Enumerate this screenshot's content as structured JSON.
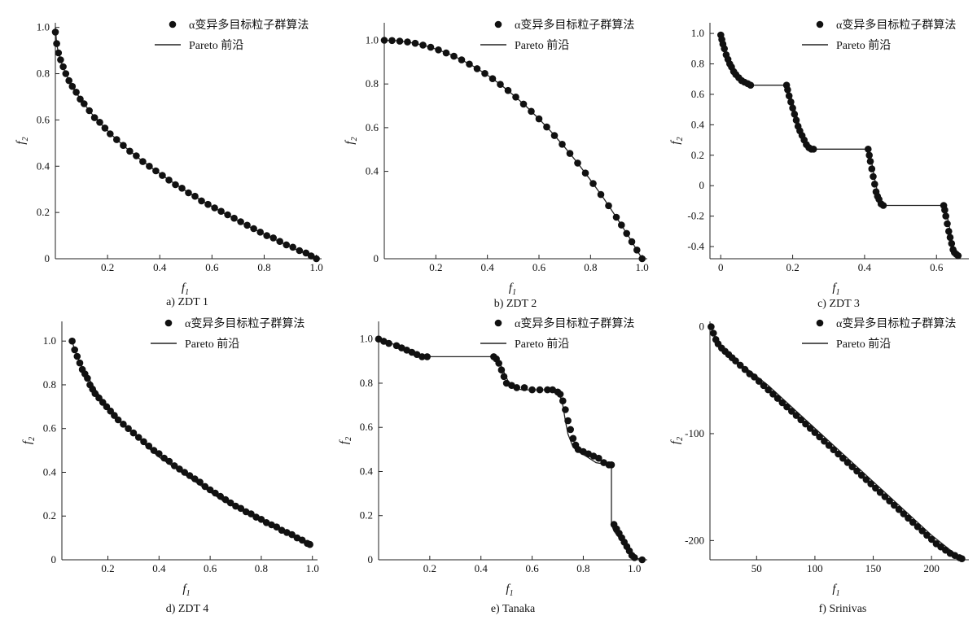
{
  "figure": {
    "legend": {
      "marker_label": "α变异多目标粒子群算法",
      "line_label": "Pareto 前沿"
    },
    "axis_labels": {
      "x": "f",
      "x_sub": "1",
      "y": "f",
      "y_sub": "2"
    }
  },
  "chart_data": [
    {
      "id": "a",
      "type": "scatter",
      "caption": "a)   ZDT 1",
      "xlim": [
        0,
        1.02
      ],
      "ylim": [
        0,
        1.02
      ],
      "xticks": [
        0.2,
        0.4,
        0.6,
        0.8,
        1.0
      ],
      "xtick_labels": [
        "0.2",
        "0.4",
        "0.6",
        "0.8",
        "1.0"
      ],
      "yticks": [
        0,
        0.2,
        0.4,
        0.6,
        0.8,
        1.0
      ],
      "ytick_labels": [
        "0",
        "0.2",
        "0.4",
        "0.6",
        "0.8",
        "1.0"
      ],
      "legend_pos": "top-right",
      "front_x": [
        0,
        0.005,
        0.01,
        0.02,
        0.03,
        0.05,
        0.07,
        0.1,
        0.14,
        0.18,
        0.22,
        0.27,
        0.32,
        0.38,
        0.44,
        0.5,
        0.56,
        0.62,
        0.68,
        0.74,
        0.8,
        0.86,
        0.92,
        0.97,
        1.0
      ],
      "front_y": [
        1.0,
        0.929,
        0.9,
        0.859,
        0.827,
        0.776,
        0.735,
        0.684,
        0.626,
        0.576,
        0.531,
        0.48,
        0.434,
        0.384,
        0.337,
        0.293,
        0.252,
        0.213,
        0.175,
        0.14,
        0.106,
        0.073,
        0.041,
        0.015,
        0.0
      ],
      "points_x": [
        0.0,
        0.005,
        0.012,
        0.02,
        0.03,
        0.04,
        0.052,
        0.065,
        0.08,
        0.095,
        0.11,
        0.13,
        0.15,
        0.17,
        0.19,
        0.21,
        0.235,
        0.26,
        0.285,
        0.31,
        0.335,
        0.36,
        0.385,
        0.41,
        0.435,
        0.46,
        0.485,
        0.51,
        0.535,
        0.56,
        0.585,
        0.61,
        0.635,
        0.66,
        0.685,
        0.71,
        0.735,
        0.76,
        0.785,
        0.81,
        0.835,
        0.86,
        0.885,
        0.91,
        0.935,
        0.96,
        0.98,
        1.0
      ],
      "points_y": [
        0.98,
        0.93,
        0.89,
        0.86,
        0.83,
        0.8,
        0.77,
        0.745,
        0.72,
        0.69,
        0.67,
        0.64,
        0.61,
        0.59,
        0.565,
        0.54,
        0.515,
        0.49,
        0.465,
        0.445,
        0.42,
        0.4,
        0.38,
        0.36,
        0.34,
        0.32,
        0.305,
        0.285,
        0.27,
        0.25,
        0.235,
        0.22,
        0.205,
        0.19,
        0.175,
        0.16,
        0.145,
        0.13,
        0.115,
        0.1,
        0.09,
        0.075,
        0.06,
        0.05,
        0.035,
        0.025,
        0.012,
        0.0
      ]
    },
    {
      "id": "b",
      "type": "scatter",
      "caption": "b)   ZDT 2",
      "xlim": [
        0,
        1.02
      ],
      "ylim": [
        0,
        1.08
      ],
      "xticks": [
        0.2,
        0.4,
        0.6,
        0.8,
        1.0
      ],
      "xtick_labels": [
        "0.2",
        "0.4",
        "0.6",
        "0.8",
        "1.0"
      ],
      "yticks": [
        0,
        0.4,
        0.6,
        0.8,
        1.0
      ],
      "ytick_labels": [
        "0",
        "0.4",
        "0.6",
        "0.8",
        "1.0"
      ],
      "legend_pos": "top-right",
      "front_x": [
        0,
        0.05,
        0.1,
        0.15,
        0.2,
        0.25,
        0.3,
        0.35,
        0.4,
        0.45,
        0.5,
        0.55,
        0.6,
        0.65,
        0.7,
        0.75,
        0.8,
        0.85,
        0.9,
        0.95,
        1.0
      ],
      "front_y": [
        1.0,
        0.998,
        0.99,
        0.978,
        0.96,
        0.938,
        0.91,
        0.878,
        0.84,
        0.798,
        0.75,
        0.698,
        0.64,
        0.578,
        0.51,
        0.438,
        0.36,
        0.278,
        0.19,
        0.098,
        0.0
      ],
      "points_x": [
        0.0,
        0.03,
        0.06,
        0.09,
        0.12,
        0.15,
        0.18,
        0.21,
        0.24,
        0.27,
        0.3,
        0.33,
        0.36,
        0.39,
        0.42,
        0.45,
        0.48,
        0.51,
        0.54,
        0.57,
        0.6,
        0.63,
        0.66,
        0.69,
        0.72,
        0.75,
        0.78,
        0.81,
        0.84,
        0.87,
        0.9,
        0.92,
        0.94,
        0.96,
        0.98,
        1.0
      ],
      "points_y": [
        1.0,
        0.999,
        0.996,
        0.992,
        0.986,
        0.978,
        0.968,
        0.956,
        0.942,
        0.927,
        0.91,
        0.891,
        0.87,
        0.848,
        0.824,
        0.798,
        0.77,
        0.74,
        0.708,
        0.675,
        0.64,
        0.603,
        0.564,
        0.524,
        0.482,
        0.438,
        0.392,
        0.344,
        0.294,
        0.243,
        0.19,
        0.154,
        0.116,
        0.078,
        0.04,
        0.0
      ]
    },
    {
      "id": "c",
      "type": "scatter",
      "caption": "c)   ZDT 3",
      "xlim": [
        -0.03,
        0.69
      ],
      "ylim": [
        -0.48,
        1.07
      ],
      "xticks": [
        0,
        0.2,
        0.4,
        0.6
      ],
      "xtick_labels": [
        "0",
        "0.2",
        "0.4",
        "0.6"
      ],
      "yticks": [
        -0.4,
        -0.2,
        0,
        0.2,
        0.4,
        0.6,
        0.8,
        1.0
      ],
      "ytick_labels": [
        "-0.4",
        "-0.2",
        "0",
        "0.2",
        "0.4",
        "0.6",
        "0.8",
        "1.0"
      ],
      "legend_pos": "top-right",
      "front_x": [
        0,
        0.005,
        0.01,
        0.02,
        0.03,
        0.04,
        0.05,
        0.06,
        0.07,
        0.083,
        0.183,
        0.19,
        0.2,
        0.21,
        0.22,
        0.23,
        0.24,
        0.25,
        0.258,
        0.41,
        0.42,
        0.43,
        0.44,
        0.452,
        0.62,
        0.63,
        0.64,
        0.652,
        0.67
      ],
      "front_y": [
        1.0,
        0.95,
        0.91,
        0.85,
        0.8,
        0.76,
        0.72,
        0.69,
        0.67,
        0.66,
        0.66,
        0.62,
        0.55,
        0.47,
        0.39,
        0.32,
        0.27,
        0.24,
        0.24,
        0.24,
        0.15,
        0.02,
        -0.08,
        -0.13,
        -0.13,
        -0.2,
        -0.32,
        -0.45,
        -0.46
      ],
      "points_x": [
        0.0,
        0.003,
        0.006,
        0.01,
        0.015,
        0.02,
        0.025,
        0.03,
        0.036,
        0.042,
        0.05,
        0.058,
        0.066,
        0.075,
        0.083,
        0.183,
        0.186,
        0.19,
        0.195,
        0.2,
        0.205,
        0.21,
        0.215,
        0.22,
        0.226,
        0.232,
        0.238,
        0.245,
        0.252,
        0.258,
        0.41,
        0.413,
        0.416,
        0.42,
        0.424,
        0.428,
        0.432,
        0.436,
        0.44,
        0.446,
        0.452,
        0.62,
        0.623,
        0.626,
        0.63,
        0.634,
        0.638,
        0.642,
        0.646,
        0.65,
        0.655,
        0.66
      ],
      "points_y": [
        0.99,
        0.96,
        0.93,
        0.9,
        0.86,
        0.83,
        0.8,
        0.78,
        0.75,
        0.73,
        0.71,
        0.69,
        0.68,
        0.67,
        0.66,
        0.66,
        0.63,
        0.59,
        0.55,
        0.51,
        0.47,
        0.43,
        0.39,
        0.36,
        0.33,
        0.3,
        0.27,
        0.25,
        0.24,
        0.24,
        0.24,
        0.2,
        0.16,
        0.11,
        0.06,
        0.01,
        -0.04,
        -0.07,
        -0.09,
        -0.12,
        -0.13,
        -0.13,
        -0.16,
        -0.2,
        -0.25,
        -0.3,
        -0.34,
        -0.38,
        -0.42,
        -0.44,
        -0.45,
        -0.46
      ]
    },
    {
      "id": "d",
      "type": "scatter",
      "caption": "d)   ZDT 4",
      "xlim": [
        0.02,
        1.02
      ],
      "ylim": [
        0,
        1.09
      ],
      "xticks": [
        0.2,
        0.4,
        0.6,
        0.8,
        1.0
      ],
      "xtick_labels": [
        "0.2",
        "0.4",
        "0.6",
        "0.8",
        "1.0"
      ],
      "yticks": [
        0,
        0.2,
        0.4,
        0.6,
        0.8,
        1.0
      ],
      "ytick_labels": [
        "0",
        "0.2",
        "0.4",
        "0.6",
        "0.8",
        "1.0"
      ],
      "legend_pos": "top-right",
      "front_x": [
        0.06,
        0.07,
        0.08,
        0.1,
        0.12,
        0.15,
        0.18,
        0.22,
        0.26,
        0.3,
        0.35,
        0.4,
        0.45,
        0.5,
        0.55,
        0.6,
        0.65,
        0.7,
        0.75,
        0.8,
        0.85,
        0.9,
        0.95,
        0.99
      ],
      "front_y": [
        1.0,
        0.96,
        0.93,
        0.88,
        0.84,
        0.78,
        0.73,
        0.67,
        0.62,
        0.58,
        0.52,
        0.47,
        0.43,
        0.39,
        0.35,
        0.31,
        0.27,
        0.24,
        0.21,
        0.18,
        0.15,
        0.12,
        0.09,
        0.07
      ],
      "points_x": [
        0.06,
        0.07,
        0.08,
        0.09,
        0.1,
        0.11,
        0.12,
        0.13,
        0.14,
        0.15,
        0.165,
        0.18,
        0.195,
        0.21,
        0.225,
        0.24,
        0.26,
        0.28,
        0.3,
        0.32,
        0.34,
        0.36,
        0.38,
        0.4,
        0.42,
        0.44,
        0.46,
        0.48,
        0.5,
        0.52,
        0.54,
        0.56,
        0.58,
        0.6,
        0.62,
        0.64,
        0.66,
        0.68,
        0.7,
        0.72,
        0.74,
        0.76,
        0.78,
        0.8,
        0.82,
        0.84,
        0.86,
        0.88,
        0.9,
        0.92,
        0.94,
        0.96,
        0.98,
        0.99
      ],
      "points_y": [
        1.0,
        0.96,
        0.93,
        0.9,
        0.87,
        0.85,
        0.83,
        0.8,
        0.78,
        0.76,
        0.74,
        0.72,
        0.7,
        0.68,
        0.66,
        0.64,
        0.62,
        0.6,
        0.58,
        0.56,
        0.54,
        0.52,
        0.5,
        0.485,
        0.465,
        0.45,
        0.43,
        0.415,
        0.4,
        0.385,
        0.37,
        0.355,
        0.335,
        0.32,
        0.305,
        0.29,
        0.275,
        0.26,
        0.245,
        0.235,
        0.22,
        0.21,
        0.195,
        0.185,
        0.17,
        0.16,
        0.15,
        0.135,
        0.125,
        0.115,
        0.1,
        0.09,
        0.075,
        0.07
      ]
    },
    {
      "id": "e",
      "type": "scatter",
      "caption": "e)   Tanaka",
      "xlim": [
        0,
        1.05
      ],
      "ylim": [
        0,
        1.08
      ],
      "xticks": [
        0.2,
        0.4,
        0.6,
        0.8,
        1.0
      ],
      "xtick_labels": [
        "0.2",
        "0.4",
        "0.6",
        "0.8",
        "1.0"
      ],
      "yticks": [
        0,
        0.2,
        0.4,
        0.6,
        0.8,
        1.0
      ],
      "ytick_labels": [
        "0",
        "0.2",
        "0.4",
        "0.6",
        "0.8",
        "1.0"
      ],
      "legend_pos": "top-right",
      "front_x": [
        0,
        0.05,
        0.1,
        0.15,
        0.19,
        0.45,
        0.47,
        0.49,
        0.51,
        0.53,
        0.56,
        0.6,
        0.65,
        0.69,
        0.71,
        0.72,
        0.73,
        0.74,
        0.76,
        0.78,
        0.81,
        0.85,
        0.9,
        0.91,
        0.91,
        0.92,
        0.94,
        0.96,
        0.98,
        1.0,
        1.03
      ],
      "front_y": [
        1.0,
        0.98,
        0.96,
        0.93,
        0.92,
        0.92,
        0.9,
        0.85,
        0.8,
        0.78,
        0.77,
        0.77,
        0.77,
        0.76,
        0.74,
        0.7,
        0.63,
        0.57,
        0.51,
        0.49,
        0.47,
        0.44,
        0.43,
        0.43,
        0.16,
        0.13,
        0.1,
        0.07,
        0.04,
        0.01,
        0.0
      ],
      "points_x": [
        0.0,
        0.02,
        0.04,
        0.07,
        0.09,
        0.11,
        0.13,
        0.15,
        0.17,
        0.19,
        0.45,
        0.46,
        0.47,
        0.48,
        0.49,
        0.5,
        0.52,
        0.54,
        0.57,
        0.6,
        0.63,
        0.66,
        0.68,
        0.7,
        0.71,
        0.72,
        0.73,
        0.74,
        0.75,
        0.76,
        0.77,
        0.78,
        0.8,
        0.82,
        0.84,
        0.86,
        0.88,
        0.9,
        0.91,
        0.92,
        0.93,
        0.94,
        0.95,
        0.96,
        0.97,
        0.98,
        0.99,
        1.0,
        1.03
      ],
      "points_y": [
        1.0,
        0.99,
        0.98,
        0.97,
        0.96,
        0.95,
        0.94,
        0.93,
        0.92,
        0.92,
        0.92,
        0.91,
        0.89,
        0.86,
        0.83,
        0.8,
        0.79,
        0.78,
        0.78,
        0.77,
        0.77,
        0.77,
        0.77,
        0.76,
        0.75,
        0.72,
        0.68,
        0.63,
        0.59,
        0.55,
        0.52,
        0.5,
        0.49,
        0.48,
        0.47,
        0.46,
        0.44,
        0.43,
        0.43,
        0.16,
        0.14,
        0.12,
        0.1,
        0.08,
        0.06,
        0.04,
        0.02,
        0.01,
        0.0
      ]
    },
    {
      "id": "f",
      "type": "scatter",
      "caption": "f)   Srinivas",
      "xlim": [
        10,
        232
      ],
      "ylim": [
        -218,
        5
      ],
      "xticks": [
        50,
        100,
        150,
        200
      ],
      "xtick_labels": [
        "50",
        "100",
        "150",
        "200"
      ],
      "yticks": [
        -200,
        -100,
        0
      ],
      "ytick_labels": [
        "-200",
        "-100",
        "0"
      ],
      "legend_pos": "top-right",
      "front_x": [
        11,
        15,
        20,
        30,
        45,
        60,
        80,
        100,
        120,
        140,
        160,
        180,
        200,
        215,
        225
      ],
      "front_y": [
        0,
        -12,
        -20,
        -30,
        -42,
        -55,
        -75,
        -95,
        -115,
        -135,
        -155,
        -175,
        -195,
        -208,
        -216
      ],
      "points_x": [
        11,
        13,
        15,
        17,
        20,
        23,
        26,
        29,
        32,
        36,
        40,
        44,
        48,
        52,
        56,
        60,
        64,
        68,
        72,
        76,
        80,
        84,
        88,
        92,
        96,
        100,
        104,
        108,
        112,
        116,
        120,
        124,
        128,
        132,
        136,
        140,
        144,
        148,
        152,
        156,
        160,
        164,
        168,
        172,
        176,
        180,
        184,
        188,
        192,
        196,
        200,
        204,
        208,
        212,
        216,
        220,
        224,
        226
      ],
      "points_y": [
        0,
        -6,
        -12,
        -16,
        -20,
        -23,
        -26,
        -29,
        -32,
        -36,
        -40,
        -44,
        -47,
        -51,
        -55,
        -59,
        -63,
        -67,
        -71,
        -75,
        -79,
        -83,
        -87,
        -91,
        -95,
        -99,
        -103,
        -107,
        -111,
        -115,
        -119,
        -123,
        -127,
        -131,
        -135,
        -139,
        -143,
        -147,
        -151,
        -155,
        -159,
        -163,
        -167,
        -171,
        -175,
        -179,
        -183,
        -187,
        -191,
        -195,
        -199,
        -203,
        -206,
        -209,
        -212,
        -214,
        -216,
        -217
      ]
    }
  ]
}
